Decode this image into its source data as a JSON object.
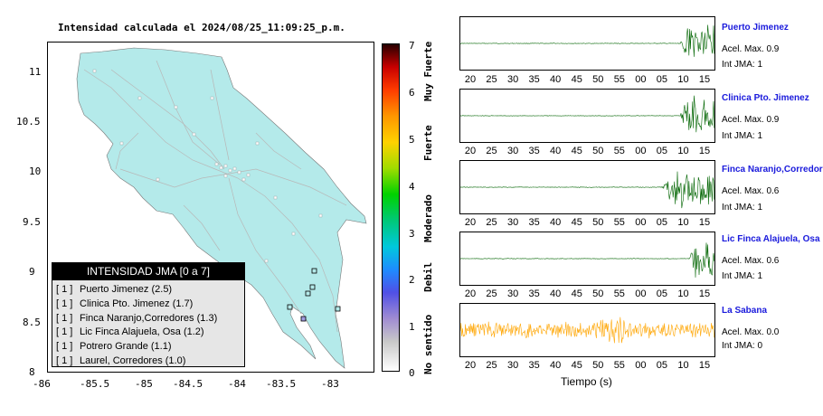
{
  "map": {
    "title": "Intensidad calculada el 2024/08/25_11:09:25_p.m.",
    "x_ticks": [
      "-86",
      "-85.5",
      "-85",
      "-84.5",
      "-84",
      "-83.5",
      "-83"
    ],
    "y_ticks": [
      "11",
      "10.5",
      "10",
      "9.5",
      "9",
      "8.5",
      "8"
    ],
    "land_color": "#b4eaea",
    "legend": {
      "header": "INTENSIDAD JMA [0 a 7]",
      "entries": [
        {
          "bracket": "[ 1 ]",
          "label": "Puerto Jimenez (2.5)"
        },
        {
          "bracket": "[ 1 ]",
          "label": "Clinica Pto. Jimenez (1.7)"
        },
        {
          "bracket": "[ 1 ]",
          "label": "Finca Naranjo,Corredores (1.3)"
        },
        {
          "bracket": "[ 1 ]",
          "label": "Lic Finca Alajuela, Osa (1.2)"
        },
        {
          "bracket": "[ 1 ]",
          "label": "Potrero Grande (1.1)"
        },
        {
          "bracket": "[ 1 ]",
          "label": "Laurel, Corredores (1.0)"
        }
      ]
    }
  },
  "colorbar": {
    "ticks": [
      "7",
      "6",
      "5",
      "4",
      "3",
      "2",
      "1",
      "0"
    ],
    "categories": [
      "Muy Fuerte",
      "Fuerte",
      "Moderado",
      "Debil",
      "No sentido"
    ]
  },
  "waveforms": {
    "x_ticks": [
      "20",
      "25",
      "30",
      "35",
      "40",
      "45",
      "50",
      "55",
      "00",
      "05",
      "10",
      "15"
    ],
    "xlabel": "Tiempo (s)",
    "stations": [
      {
        "name": "Puerto Jimenez",
        "accel": "Acel. Max. 0.9",
        "int": "Int JMA: 1",
        "color": "#006400",
        "onset": 0.865,
        "end": 1.0
      },
      {
        "name": "Clinica Pto. Jimenez",
        "accel": "Acel. Max. 0.9",
        "int": "Int JMA: 1",
        "color": "#006400",
        "onset": 0.86,
        "end": 1.0
      },
      {
        "name": "Finca Naranjo,Corredores",
        "accel": "Acel. Max. 0.6",
        "int": "Int JMA: 1",
        "color": "#006400",
        "onset": 0.79,
        "end": 1.0
      },
      {
        "name": "Lic Finca Alajuela, Osa",
        "accel": "Acel. Max. 0.6",
        "int": "Int JMA: 1",
        "color": "#006400",
        "onset": 0.9,
        "end": 1.0
      },
      {
        "name": "La Sabana",
        "accel": "Acel. Max. 0.0",
        "int": "Int JMA: 0",
        "color": "#ffa500",
        "onset": 0.0,
        "end": 1.0
      }
    ]
  }
}
